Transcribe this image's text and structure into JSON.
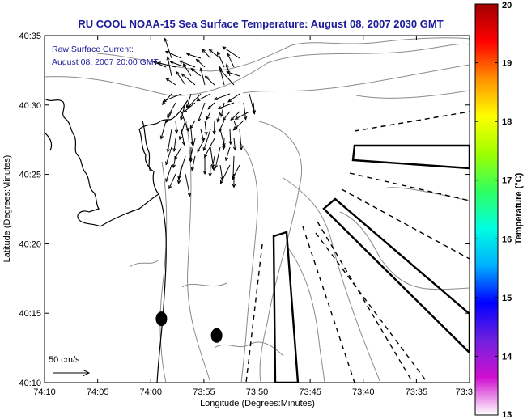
{
  "chart_data": {
    "type": "map",
    "title": "RU COOL  NOAA-15  Sea Surface Temperature:  August 08, 2007 2030 GMT",
    "title_color": "#1a1a9a",
    "annotation_lines": [
      "Raw Surface Current:",
      "August 08, 2007 20:00 GMT"
    ],
    "annotation_color": "#1a1a9a",
    "xlabel": "Longitude (Degrees:Minutes)",
    "ylabel": "Latitude (Degrees:Minutes)",
    "xlim_deg": [
      -74.1667,
      -73.5
    ],
    "ylim_deg": [
      40.1667,
      40.5833
    ],
    "x_ticks": [
      {
        "label": "74:10",
        "value": -74.1667
      },
      {
        "label": "74:05",
        "value": -74.0833
      },
      {
        "label": "74:00",
        "value": -74.0
      },
      {
        "label": "73:55",
        "value": -73.9167
      },
      {
        "label": "73:50",
        "value": -73.8333
      },
      {
        "label": "73:45",
        "value": -73.75
      },
      {
        "label": "73:40",
        "value": -73.6667
      },
      {
        "label": "73:35",
        "value": -73.5833
      },
      {
        "label": "73:3",
        "value": -73.5
      }
    ],
    "y_ticks": [
      {
        "label": "40:10",
        "value": 40.1667
      },
      {
        "label": "40:15",
        "value": 40.25
      },
      {
        "label": "40:20",
        "value": 40.3333
      },
      {
        "label": "40:25",
        "value": 40.4167
      },
      {
        "label": "40:30",
        "value": 40.5
      },
      {
        "label": "40:35",
        "value": 40.5833
      }
    ],
    "scale_label": "50 cm/s",
    "colorbar": {
      "label": "Temperature (°C)",
      "ticks": [
        "20",
        "19",
        "18",
        "17",
        "16",
        "15",
        "14",
        "13"
      ],
      "range": [
        13,
        20
      ],
      "colors": [
        "#ffffff",
        "#d010d0",
        "#7020e0",
        "#0000ff",
        "#00b0ff",
        "#00ffe0",
        "#30ff60",
        "#a0ff00",
        "#ffff00",
        "#ff9000",
        "#ff0000",
        "#a00000"
      ]
    },
    "markers": [
      {
        "lon": -73.9833,
        "lat": 40.2433
      },
      {
        "lon": -73.8967,
        "lat": 40.2233
      }
    ],
    "current_vectors_visible": true,
    "grid": false
  }
}
